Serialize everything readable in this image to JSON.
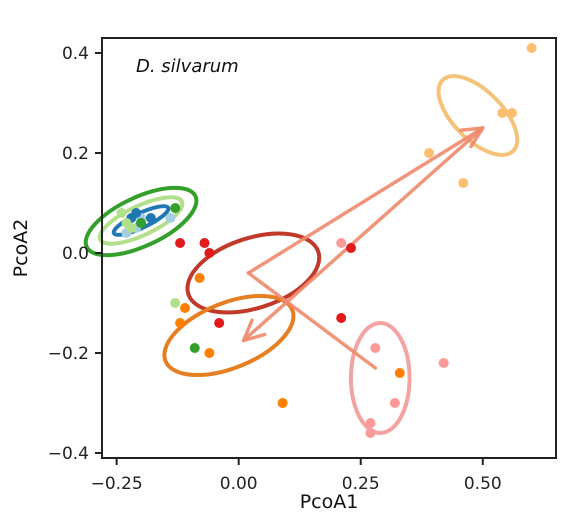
{
  "chart_data": {
    "type": "scatter",
    "title": "",
    "annotation": "D. silvarum",
    "xlabel": "PcoA1",
    "ylabel": "PcoA2",
    "xlim": [
      -0.28,
      0.65
    ],
    "ylim": [
      -0.41,
      0.43
    ],
    "xticks": [
      -0.25,
      0.0,
      0.25,
      0.5
    ],
    "xtick_labels": [
      "−0.25",
      "0.00",
      "0.25",
      "0.50"
    ],
    "yticks": [
      0.4,
      0.2,
      0.0,
      -0.2,
      -0.4
    ],
    "ytick_labels": [
      "0.4",
      "0.2",
      "0.0",
      "−0.2",
      "−0.4"
    ],
    "grid": false,
    "series": [
      {
        "color": "#a6cee3",
        "points": [
          [
            -0.21,
            0.05
          ],
          [
            -0.2,
            0.07
          ],
          [
            -0.23,
            0.04
          ],
          [
            -0.14,
            0.07
          ]
        ]
      },
      {
        "color": "#1f78b4",
        "points": [
          [
            -0.22,
            0.07
          ],
          [
            -0.2,
            0.06
          ],
          [
            -0.18,
            0.07
          ],
          [
            -0.21,
            0.08
          ]
        ]
      },
      {
        "color": "#b2df8a",
        "points": [
          [
            -0.24,
            0.08
          ],
          [
            -0.23,
            0.06
          ],
          [
            -0.22,
            0.05
          ],
          [
            -0.13,
            -0.1
          ]
        ]
      },
      {
        "color": "#33a02c",
        "points": [
          [
            -0.13,
            0.09
          ],
          [
            -0.09,
            -0.19
          ],
          [
            -0.2,
            0.06
          ]
        ]
      },
      {
        "color": "#fb9a99",
        "points": [
          [
            0.21,
            0.02
          ],
          [
            0.28,
            -0.19
          ],
          [
            0.32,
            -0.3
          ],
          [
            0.27,
            -0.34
          ],
          [
            0.27,
            -0.36
          ],
          [
            0.42,
            -0.22
          ]
        ]
      },
      {
        "color": "#e31a1c",
        "points": [
          [
            -0.12,
            0.02
          ],
          [
            -0.07,
            0.02
          ],
          [
            -0.06,
            0.0
          ],
          [
            -0.04,
            -0.14
          ],
          [
            0.21,
            -0.13
          ],
          [
            0.23,
            0.01
          ]
        ]
      },
      {
        "color": "#fdbf6f",
        "points": [
          [
            0.39,
            0.2
          ],
          [
            0.46,
            0.14
          ],
          [
            0.54,
            0.28
          ],
          [
            0.6,
            0.41
          ],
          [
            0.56,
            0.28
          ]
        ]
      },
      {
        "color": "#ff7f00",
        "points": [
          [
            -0.11,
            -0.11
          ],
          [
            -0.12,
            -0.14
          ],
          [
            -0.08,
            -0.05
          ],
          [
            -0.06,
            -0.2
          ],
          [
            0.09,
            -0.3
          ],
          [
            0.33,
            -0.24
          ]
        ]
      }
    ],
    "ellipses": [
      {
        "color": "#33a02c",
        "cx": -0.2,
        "cy": 0.063,
        "rx": 0.05,
        "ry": 0.12,
        "angle_deg": 65
      },
      {
        "color": "#b2df8a",
        "cx": -0.2,
        "cy": 0.065,
        "rx": 0.03,
        "ry": 0.09,
        "angle_deg": 65
      },
      {
        "color": "#1f78b4",
        "cx": -0.2,
        "cy": 0.065,
        "rx": 0.015,
        "ry": 0.06,
        "angle_deg": 65
      },
      {
        "color": "#c0392b",
        "cx": 0.03,
        "cy": -0.04,
        "rx": 0.14,
        "ry": 0.07,
        "angle_deg": -18
      },
      {
        "color": "#e67e22",
        "cx": -0.02,
        "cy": -0.165,
        "rx": 0.14,
        "ry": 0.065,
        "angle_deg": -22
      },
      {
        "color": "#f4a3a3",
        "cx": 0.29,
        "cy": -0.25,
        "rx": 0.06,
        "ry": 0.11,
        "angle_deg": 0
      },
      {
        "color": "#f5c27a",
        "cx": 0.49,
        "cy": 0.275,
        "rx": 0.05,
        "ry": 0.1,
        "angle_deg": -45
      }
    ],
    "path_color": "#f08a6c",
    "path": [
      [
        0.28,
        -0.23
      ],
      [
        0.02,
        -0.04
      ],
      [
        0.5,
        0.25
      ],
      [
        0.01,
        -0.175
      ]
    ]
  }
}
